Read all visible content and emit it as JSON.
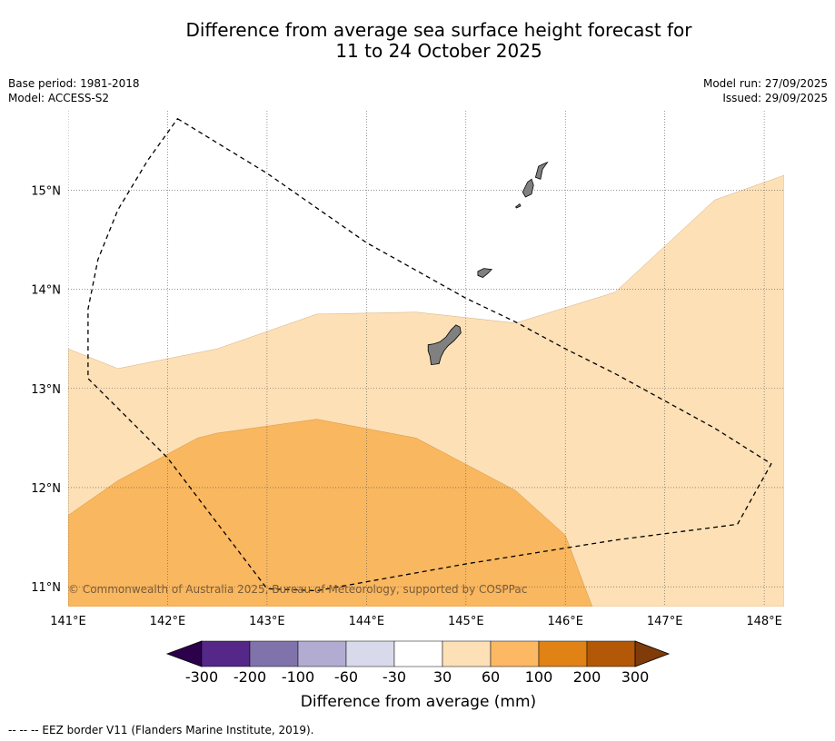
{
  "title": {
    "line1": "Difference from average sea surface height forecast for",
    "line2": "11 to 24 October 2025"
  },
  "meta": {
    "base_period": "Base period: 1981-2018",
    "model": "Model: ACCESS-S2",
    "model_run": "Model run: 27/09/2025",
    "issued": "Issued: 29/09/2025"
  },
  "map": {
    "lon_min": 141.0,
    "lon_max": 148.2,
    "lat_min": 10.8,
    "lat_max": 15.8,
    "lat_ticks": [
      {
        "value": 15,
        "label": "15°N"
      },
      {
        "value": 14,
        "label": "14°N"
      },
      {
        "value": 13,
        "label": "13°N"
      },
      {
        "value": 12,
        "label": "12°N"
      },
      {
        "value": 11,
        "label": "11°N"
      }
    ],
    "lon_ticks": [
      {
        "value": 141,
        "label": "141°E"
      },
      {
        "value": 142,
        "label": "142°E"
      },
      {
        "value": 143,
        "label": "143°E"
      },
      {
        "value": 144,
        "label": "144°E"
      },
      {
        "value": 145,
        "label": "145°E"
      },
      {
        "value": 146,
        "label": "146°E"
      },
      {
        "value": 147,
        "label": "147°E"
      },
      {
        "value": 148,
        "label": "148°E"
      }
    ],
    "copyright": "© Commonwealth of Australia 2025, Bureau of Meteorology, supported by COSPPac",
    "colors": {
      "band_30_60": "#fde0b6",
      "band_60_100": "#f9b75f",
      "land": "#808080",
      "grid": "#555555",
      "eez": "#000000"
    },
    "zone_30_60": [
      [
        141.0,
        13.4
      ],
      [
        141.5,
        13.2
      ],
      [
        142.5,
        13.4
      ],
      [
        143.5,
        13.75
      ],
      [
        144.5,
        13.77
      ],
      [
        145.5,
        13.66
      ],
      [
        146.5,
        13.97
      ],
      [
        147.5,
        14.9
      ],
      [
        148.2,
        15.15
      ],
      [
        148.2,
        10.8
      ],
      [
        141.0,
        10.8
      ]
    ],
    "zone_60_100": [
      [
        141.0,
        11.72
      ],
      [
        141.5,
        12.07
      ],
      [
        142.3,
        12.5
      ],
      [
        142.5,
        12.55
      ],
      [
        143.5,
        12.69
      ],
      [
        144.5,
        12.5
      ],
      [
        145.5,
        11.97
      ],
      [
        146.0,
        11.52
      ],
      [
        146.27,
        10.8
      ],
      [
        141.0,
        10.8
      ]
    ],
    "eez_border": [
      [
        142.1,
        15.72
      ],
      [
        143.0,
        15.17
      ],
      [
        144.0,
        14.47
      ],
      [
        145.0,
        13.91
      ],
      [
        145.5,
        13.67
      ],
      [
        146.0,
        13.4
      ],
      [
        146.5,
        13.15
      ],
      [
        147.5,
        12.6
      ],
      [
        148.07,
        12.24
      ],
      [
        147.73,
        11.63
      ],
      [
        146.5,
        11.47
      ],
      [
        145.0,
        11.23
      ],
      [
        143.5,
        10.96
      ],
      [
        143.0,
        10.98
      ],
      [
        142.0,
        12.3
      ],
      [
        141.2,
        13.1
      ],
      [
        141.2,
        13.8
      ],
      [
        141.3,
        14.3
      ],
      [
        141.5,
        14.8
      ],
      [
        141.8,
        15.3
      ],
      [
        142.1,
        15.72
      ]
    ],
    "islands": [
      [
        [
          144.62,
          13.44
        ],
        [
          144.68,
          13.45
        ],
        [
          144.74,
          13.47
        ],
        [
          144.8,
          13.52
        ],
        [
          144.85,
          13.59
        ],
        [
          144.9,
          13.64
        ],
        [
          144.94,
          13.62
        ],
        [
          144.95,
          13.56
        ],
        [
          144.88,
          13.48
        ],
        [
          144.82,
          13.43
        ],
        [
          144.78,
          13.38
        ],
        [
          144.75,
          13.32
        ],
        [
          144.73,
          13.25
        ],
        [
          144.65,
          13.24
        ],
        [
          144.64,
          13.32
        ],
        [
          144.62,
          13.38
        ]
      ],
      [
        [
          145.12,
          14.18
        ],
        [
          145.18,
          14.21
        ],
        [
          145.26,
          14.2
        ],
        [
          145.22,
          14.16
        ],
        [
          145.17,
          14.12
        ],
        [
          145.12,
          14.14
        ]
      ],
      [
        [
          145.57,
          14.98
        ],
        [
          145.62,
          15.08
        ],
        [
          145.66,
          15.11
        ],
        [
          145.68,
          15.05
        ],
        [
          145.66,
          14.96
        ],
        [
          145.6,
          14.93
        ]
      ],
      [
        [
          145.7,
          15.13
        ],
        [
          145.73,
          15.24
        ],
        [
          145.77,
          15.26
        ],
        [
          145.82,
          15.28
        ],
        [
          145.77,
          15.21
        ],
        [
          145.75,
          15.11
        ]
      ],
      [
        [
          145.5,
          14.83
        ],
        [
          145.54,
          14.86
        ],
        [
          145.55,
          14.84
        ],
        [
          145.51,
          14.82
        ]
      ]
    ]
  },
  "colorbar": {
    "title": "Difference from average (mm)",
    "tick_labels": [
      "-300",
      "-200",
      "-100",
      "-60",
      "-30",
      "30",
      "60",
      "100",
      "200",
      "300"
    ],
    "extend_low_color": "#2d004b",
    "extend_high_color": "#7f3b08",
    "colors": [
      "#542788",
      "#8073ac",
      "#b2abd2",
      "#d8daeb",
      "#ffffff",
      "#fee0b6",
      "#fdb863",
      "#e08214",
      "#b35806"
    ]
  },
  "footer": {
    "eez_legend": "--  --  -- EEZ border V11 (Flanders Marine Institute, 2019)."
  }
}
